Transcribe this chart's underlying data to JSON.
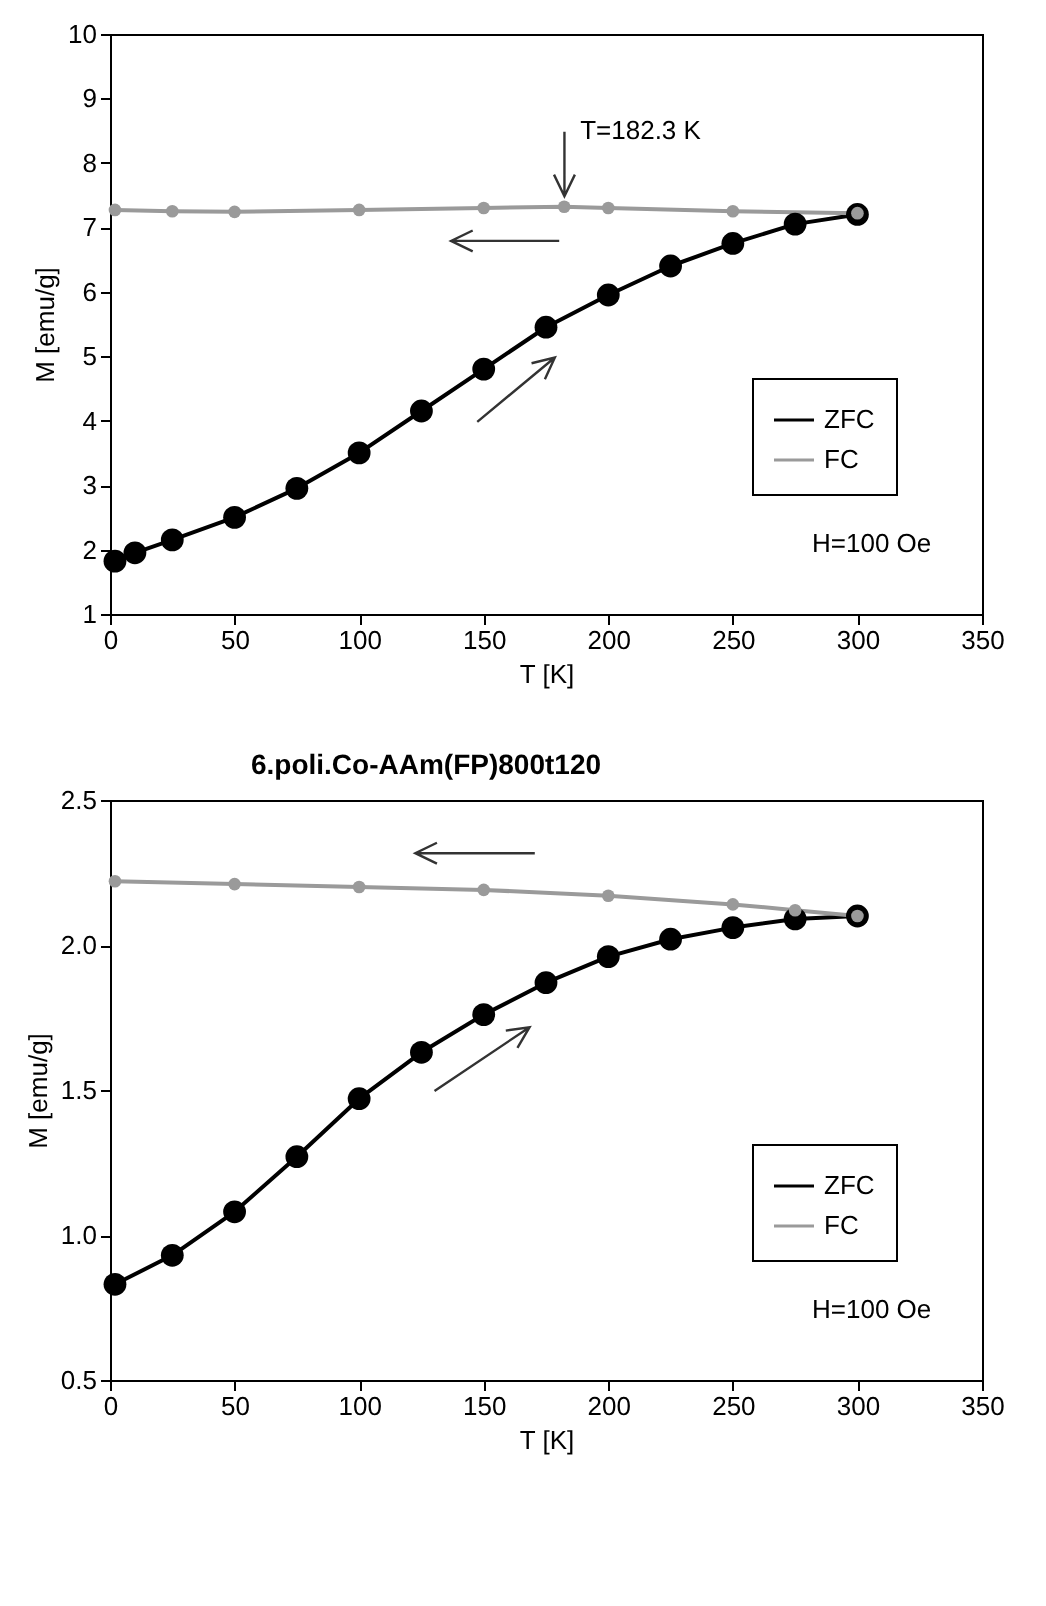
{
  "chart_data": [
    {
      "type": "line",
      "xlabel": "T [K]",
      "ylabel": "M [emu/g]",
      "xlim": [
        0,
        350
      ],
      "xticks": [
        0,
        50,
        100,
        150,
        200,
        250,
        300,
        350
      ],
      "ylim": [
        1,
        10
      ],
      "yticks": [
        1,
        2,
        3,
        4,
        5,
        6,
        7,
        8,
        9,
        10
      ],
      "grid": false,
      "legend": "bottom right",
      "marker": "circle",
      "series": [
        {
          "name": "ZFC",
          "color": "#000000",
          "x": [
            2,
            10,
            25,
            50,
            75,
            100,
            125,
            150,
            175,
            200,
            225,
            250,
            275,
            300
          ],
          "values": [
            1.82,
            1.95,
            2.15,
            2.5,
            2.95,
            3.5,
            4.15,
            4.8,
            5.45,
            5.95,
            6.4,
            6.75,
            7.05,
            7.2
          ]
        },
        {
          "name": "FC",
          "color": "#9a9a9a",
          "x": [
            2,
            25,
            50,
            100,
            150,
            182.3,
            200,
            250,
            300
          ],
          "values": [
            7.27,
            7.25,
            7.24,
            7.27,
            7.3,
            7.32,
            7.3,
            7.25,
            7.22
          ]
        }
      ],
      "annotations": [
        {
          "text": "T=182.3 K",
          "x": 182.3,
          "y": 7.32
        },
        "H=100 Oe"
      ]
    },
    {
      "type": "line",
      "title": "6.poli.Co-AAm(FP)800t120",
      "xlabel": "T [K]",
      "ylabel": "M [emu/g]",
      "xlim": [
        0,
        350
      ],
      "xticks": [
        0,
        50,
        100,
        150,
        200,
        250,
        300,
        350
      ],
      "ylim": [
        0.5,
        2.5
      ],
      "yticks": [
        0.5,
        {
          "value": 1,
          "label": "1.0"
        },
        1.5,
        {
          "value": 2,
          "label": "2.0"
        },
        2.5
      ],
      "grid": false,
      "legend": "bottom right",
      "marker": "circle",
      "series": [
        {
          "name": "ZFC",
          "color": "#000000",
          "x": [
            2,
            25,
            50,
            75,
            100,
            125,
            150,
            175,
            200,
            225,
            250,
            275,
            300
          ],
          "values": [
            0.83,
            0.93,
            1.08,
            1.27,
            1.47,
            1.63,
            1.76,
            1.87,
            1.96,
            2.02,
            2.06,
            2.09,
            2.1
          ]
        },
        {
          "name": "FC",
          "color": "#9a9a9a",
          "x": [
            2,
            50,
            100,
            150,
            200,
            250,
            275,
            300
          ],
          "values": [
            2.22,
            2.21,
            2.2,
            2.19,
            2.17,
            2.14,
            2.12,
            2.1
          ]
        }
      ],
      "annotations": [
        "H=100 Oe"
      ]
    }
  ]
}
